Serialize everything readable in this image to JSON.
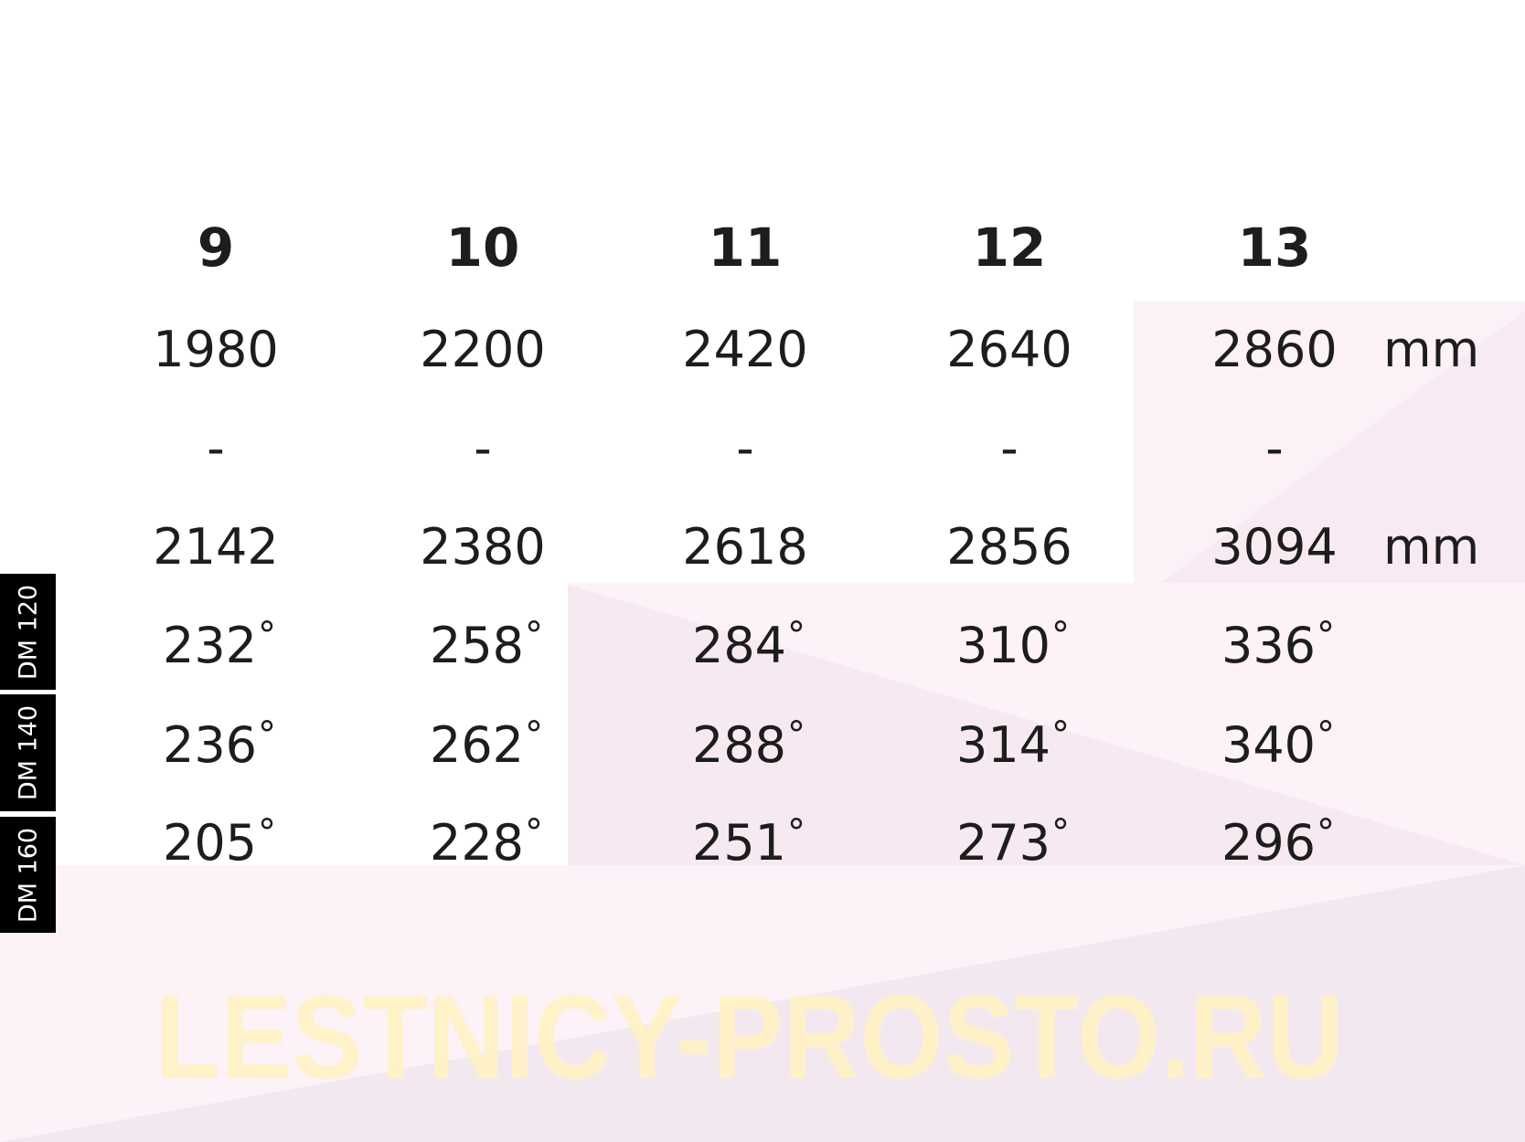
{
  "columns": [
    "9",
    "10",
    "11",
    "12",
    "13"
  ],
  "min_length": [
    "1980",
    "2200",
    "2420",
    "2640",
    "2860"
  ],
  "separator": "-",
  "max_length": [
    "2142",
    "2380",
    "2618",
    "2856",
    "3094"
  ],
  "unit": "mm",
  "degree_symbol": "°",
  "rows": [
    {
      "label": "DM 120",
      "values": [
        "232",
        "258",
        "284",
        "310",
        "336"
      ]
    },
    {
      "label": "DM 140",
      "values": [
        "236",
        "262",
        "288",
        "314",
        "340"
      ]
    },
    {
      "label": "DM 160",
      "values": [
        "205",
        "228",
        "251",
        "273",
        "296"
      ]
    }
  ],
  "watermark": "LESTNICY-PROSTO.RU",
  "colors": {
    "text": "#1d1d1b",
    "label_bg": "#000000",
    "background_tint": "#fbf0f6",
    "watermark": "#fff3c4"
  }
}
